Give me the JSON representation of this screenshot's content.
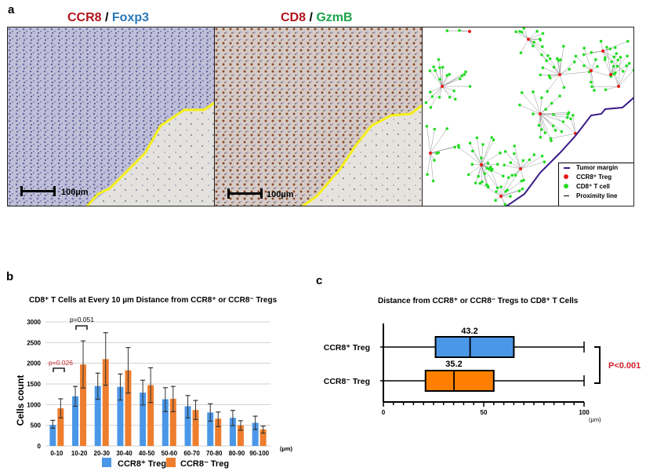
{
  "panel_a": {
    "letter": "a",
    "images": [
      {
        "title_part1": "CCR8",
        "separator": " / ",
        "title_part2": "Foxp3",
        "color1": "#b0151b",
        "color2": "#2a78b8",
        "scale_bar": "100µm"
      },
      {
        "title_part1": "CD8",
        "separator": " / ",
        "title_part2": "GzmB",
        "color1": "#b0151b",
        "color2": "#1da34a",
        "scale_bar": "100µm"
      },
      {
        "title_part1": "",
        "separator": "",
        "title_part2": "",
        "scale_bar": ""
      }
    ],
    "legend": [
      {
        "label": "Tumor margin",
        "color": "#3a1a8a",
        "shape": "line"
      },
      {
        "label": "CCR8⁺ Treg",
        "color": "#e81818",
        "shape": "dot"
      },
      {
        "label": "CD8⁺ T cell",
        "color": "#22dd22",
        "shape": "dot"
      },
      {
        "label": "Proximity line",
        "color": "#000000",
        "shape": "line"
      }
    ]
  },
  "panel_b": {
    "letter": "b",
    "title": "CD8⁺ T Cells at Every 10 µm Distance from CCR8⁺ or CCR8⁻ Tregs",
    "ylabel": "Cells count",
    "unit": "(µm)",
    "pvalues": [
      {
        "text": "p=0.026",
        "color": "#c0282e"
      },
      {
        "text": "p=0.051",
        "color": "#000000"
      }
    ],
    "legend": [
      {
        "label": "CCR8⁺ Treg",
        "color": "#4a97e8"
      },
      {
        "label": "CCR8⁻ Treg",
        "color": "#ee7d2d"
      }
    ]
  },
  "panel_c": {
    "letter": "c",
    "title": "Distance from CCR8⁺ or CCR8⁻ Tregs to CD8⁺ T Cells",
    "rows": [
      {
        "label": "CCR8⁺ Treg",
        "median_label": "43.2"
      },
      {
        "label": "CCR8⁻ Treg",
        "median_label": "35.2"
      }
    ],
    "pvalue": "P<0.001",
    "unit": "(µm)"
  },
  "chart_data": [
    {
      "type": "bar",
      "title": "CD8⁺ T Cells at Every 10 µm Distance from CCR8⁺ or CCR8⁻ Tregs",
      "xlabel": "(µm)",
      "ylabel": "Cells count",
      "ylim": [
        0,
        3000
      ],
      "yticks": [
        0,
        500,
        1000,
        1500,
        2000,
        2500,
        3000
      ],
      "grid": true,
      "legend_position": "bottom",
      "categories": [
        "0-10",
        "10-20",
        "20-30",
        "30-40",
        "40-50",
        "50-60",
        "60-70",
        "70-80",
        "80-90",
        "90-100"
      ],
      "series": [
        {
          "name": "CCR8⁺ Treg",
          "color": "#4a97e8",
          "values": [
            510,
            1200,
            1450,
            1430,
            1290,
            1130,
            960,
            810,
            680,
            560
          ],
          "error_low": [
            430,
            960,
            1130,
            1110,
            990,
            830,
            680,
            600,
            490,
            400
          ],
          "error_high": [
            620,
            1440,
            1760,
            1740,
            1590,
            1410,
            1220,
            1020,
            860,
            720
          ]
        },
        {
          "name": "CCR8⁻ Treg",
          "color": "#ee7d2d",
          "values": [
            910,
            1970,
            2100,
            1830,
            1470,
            1140,
            870,
            660,
            500,
            400
          ],
          "error_low": [
            680,
            1400,
            1470,
            1280,
            1050,
            830,
            640,
            470,
            380,
            310
          ],
          "error_high": [
            1140,
            2540,
            2740,
            2380,
            1890,
            1440,
            1100,
            820,
            610,
            480
          ]
        }
      ],
      "annotations": [
        {
          "text": "p=0.026",
          "between": "0-10"
        },
        {
          "text": "p=0.051",
          "between": "10-20"
        }
      ]
    },
    {
      "type": "box",
      "title": "Distance from CCR8⁺ or CCR8⁻ Tregs to CD8⁺ T Cells",
      "xlabel": "(µm)",
      "xlim": [
        0,
        100
      ],
      "xticks": [
        0,
        50,
        100
      ],
      "series": [
        {
          "name": "CCR8⁺ Treg",
          "color": "#4a97e8",
          "whisker_low": 0,
          "q1": 26,
          "median": 43.2,
          "q3": 65,
          "whisker_high": 100
        },
        {
          "name": "CCR8⁻ Treg",
          "color": "#ff8000",
          "whisker_low": 0,
          "q1": 21,
          "median": 35.2,
          "q3": 55,
          "whisker_high": 100
        }
      ],
      "annotations": [
        {
          "text": "P<0.001"
        }
      ]
    }
  ]
}
